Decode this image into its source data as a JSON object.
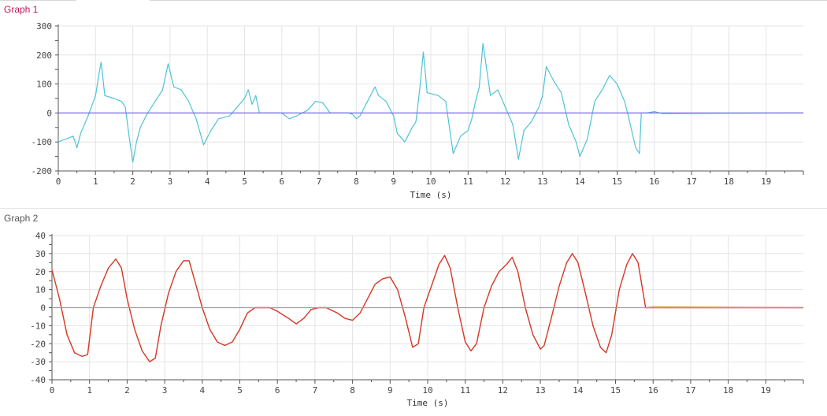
{
  "chart_data": [
    {
      "type": "line",
      "title": "Graph 1",
      "xlabel": "Time (s)",
      "ylabel": "",
      "xlim": [
        0,
        20
      ],
      "ylim": [
        -200,
        300
      ],
      "xticks": [
        0,
        1,
        2,
        3,
        4,
        5,
        6,
        7,
        8,
        9,
        10,
        11,
        12,
        13,
        14,
        15,
        16,
        17,
        18,
        19
      ],
      "yticks": [
        -200,
        -100,
        0,
        100,
        200,
        300
      ],
      "grid": true,
      "colors": {
        "signal": "#4ec3d6",
        "baseline": "#7b68ee"
      },
      "series": [
        {
          "values": [
            [
              0,
              -100
            ],
            [
              0.2,
              -90
            ],
            [
              0.4,
              -80
            ],
            [
              0.5,
              -120
            ],
            [
              0.6,
              -70
            ],
            [
              0.8,
              -10
            ],
            [
              1.0,
              60
            ],
            [
              1.1,
              140
            ],
            [
              1.15,
              175
            ],
            [
              1.25,
              60
            ],
            [
              1.5,
              50
            ],
            [
              1.7,
              40
            ],
            [
              1.8,
              20
            ],
            [
              1.9,
              -80
            ],
            [
              2.0,
              -170
            ],
            [
              2.1,
              -100
            ],
            [
              2.2,
              -50
            ],
            [
              2.4,
              0
            ],
            [
              2.6,
              40
            ],
            [
              2.8,
              80
            ],
            [
              2.95,
              170
            ],
            [
              3.1,
              90
            ],
            [
              3.3,
              80
            ],
            [
              3.5,
              40
            ],
            [
              3.7,
              -20
            ],
            [
              3.9,
              -110
            ],
            [
              4.1,
              -60
            ],
            [
              4.3,
              -20
            ],
            [
              4.6,
              -10
            ],
            [
              4.8,
              20
            ],
            [
              5.0,
              50
            ],
            [
              5.1,
              80
            ],
            [
              5.2,
              30
            ],
            [
              5.3,
              60
            ],
            [
              5.4,
              0
            ],
            [
              6.0,
              0
            ],
            [
              6.2,
              -20
            ],
            [
              6.4,
              -10
            ],
            [
              6.7,
              10
            ],
            [
              6.9,
              40
            ],
            [
              7.1,
              35
            ],
            [
              7.3,
              0
            ],
            [
              7.8,
              0
            ],
            [
              7.9,
              -5
            ],
            [
              8.0,
              -20
            ],
            [
              8.1,
              -10
            ],
            [
              8.3,
              40
            ],
            [
              8.5,
              90
            ],
            [
              8.6,
              60
            ],
            [
              8.8,
              40
            ],
            [
              9.0,
              -10
            ],
            [
              9.1,
              -70
            ],
            [
              9.3,
              -100
            ],
            [
              9.5,
              -50
            ],
            [
              9.6,
              -30
            ],
            [
              9.7,
              80
            ],
            [
              9.8,
              210
            ],
            [
              9.9,
              70
            ],
            [
              10.2,
              60
            ],
            [
              10.4,
              40
            ],
            [
              10.6,
              -140
            ],
            [
              10.8,
              -80
            ],
            [
              11.0,
              -60
            ],
            [
              11.1,
              -20
            ],
            [
              11.2,
              40
            ],
            [
              11.3,
              90
            ],
            [
              11.4,
              240
            ],
            [
              11.6,
              60
            ],
            [
              11.8,
              80
            ],
            [
              12.0,
              20
            ],
            [
              12.2,
              -40
            ],
            [
              12.35,
              -160
            ],
            [
              12.5,
              -60
            ],
            [
              12.7,
              -30
            ],
            [
              12.9,
              20
            ],
            [
              13.0,
              60
            ],
            [
              13.1,
              160
            ],
            [
              13.3,
              110
            ],
            [
              13.5,
              70
            ],
            [
              13.7,
              -40
            ],
            [
              13.9,
              -100
            ],
            [
              14.0,
              -150
            ],
            [
              14.2,
              -90
            ],
            [
              14.4,
              40
            ],
            [
              14.6,
              80
            ],
            [
              14.8,
              130
            ],
            [
              15.0,
              100
            ],
            [
              15.2,
              40
            ],
            [
              15.3,
              -10
            ],
            [
              15.5,
              -120
            ],
            [
              15.6,
              -140
            ],
            [
              15.65,
              0
            ],
            [
              15.8,
              0
            ],
            [
              16.0,
              5
            ],
            [
              16.2,
              -2
            ],
            [
              19.5,
              0
            ],
            [
              20,
              0
            ]
          ]
        },
        {
          "values": [
            [
              0,
              0
            ],
            [
              20,
              0
            ]
          ]
        }
      ]
    },
    {
      "type": "line",
      "title": "Graph 2",
      "xlabel": "Time (s)",
      "ylabel": "",
      "xlim": [
        0,
        20
      ],
      "ylim": [
        -40,
        40
      ],
      "xticks": [
        0,
        1,
        2,
        3,
        4,
        5,
        6,
        7,
        8,
        9,
        10,
        11,
        12,
        13,
        14,
        15,
        16,
        17,
        18,
        19
      ],
      "yticks": [
        -40,
        -30,
        -20,
        -10,
        0,
        10,
        20,
        30,
        40
      ],
      "grid": true,
      "colors": {
        "raw": "#e3b13a",
        "filtered": "#d63a2e",
        "baseline": "#9e9e9e"
      },
      "series": [
        {
          "values": [
            [
              0,
              21
            ],
            [
              0.2,
              5
            ],
            [
              0.4,
              -15
            ],
            [
              0.6,
              -25
            ],
            [
              0.8,
              -27
            ],
            [
              0.95,
              -26
            ],
            [
              1.1,
              0
            ],
            [
              1.3,
              12
            ],
            [
              1.5,
              22
            ],
            [
              1.7,
              27
            ],
            [
              1.85,
              22
            ],
            [
              2.0,
              5
            ],
            [
              2.2,
              -12
            ],
            [
              2.4,
              -24
            ],
            [
              2.6,
              -30
            ],
            [
              2.75,
              -28
            ],
            [
              2.9,
              -10
            ],
            [
              3.1,
              8
            ],
            [
              3.3,
              20
            ],
            [
              3.5,
              26
            ],
            [
              3.65,
              26
            ],
            [
              3.8,
              15
            ],
            [
              4.0,
              0
            ],
            [
              4.2,
              -12
            ],
            [
              4.4,
              -19
            ],
            [
              4.6,
              -21
            ],
            [
              4.8,
              -19
            ],
            [
              5.0,
              -12
            ],
            [
              5.2,
              -3
            ],
            [
              5.4,
              0
            ],
            [
              5.8,
              0
            ],
            [
              6.0,
              -2
            ],
            [
              6.3,
              -6
            ],
            [
              6.5,
              -9
            ],
            [
              6.7,
              -6
            ],
            [
              6.9,
              -1
            ],
            [
              7.1,
              0
            ],
            [
              7.3,
              0
            ],
            [
              7.6,
              -3
            ],
            [
              7.8,
              -6
            ],
            [
              8.0,
              -7
            ],
            [
              8.2,
              -3
            ],
            [
              8.4,
              5
            ],
            [
              8.6,
              13
            ],
            [
              8.8,
              16
            ],
            [
              9.0,
              17
            ],
            [
              9.2,
              10
            ],
            [
              9.4,
              -5
            ],
            [
              9.6,
              -22
            ],
            [
              9.75,
              -20
            ],
            [
              9.9,
              0
            ],
            [
              10.1,
              12
            ],
            [
              10.3,
              24
            ],
            [
              10.45,
              29
            ],
            [
              10.6,
              22
            ],
            [
              10.8,
              0
            ],
            [
              11.0,
              -19
            ],
            [
              11.15,
              -24
            ],
            [
              11.3,
              -20
            ],
            [
              11.5,
              0
            ],
            [
              11.7,
              12
            ],
            [
              11.9,
              20
            ],
            [
              12.1,
              24
            ],
            [
              12.25,
              28
            ],
            [
              12.4,
              20
            ],
            [
              12.6,
              0
            ],
            [
              12.8,
              -15
            ],
            [
              13.0,
              -23
            ],
            [
              13.1,
              -21
            ],
            [
              13.3,
              -5
            ],
            [
              13.5,
              12
            ],
            [
              13.7,
              25
            ],
            [
              13.85,
              30
            ],
            [
              14.0,
              25
            ],
            [
              14.2,
              8
            ],
            [
              14.4,
              -10
            ],
            [
              14.6,
              -22
            ],
            [
              14.75,
              -25
            ],
            [
              14.9,
              -15
            ],
            [
              15.1,
              10
            ],
            [
              15.3,
              24
            ],
            [
              15.45,
              30
            ],
            [
              15.6,
              25
            ],
            [
              15.8,
              0
            ],
            [
              16.0,
              0.5
            ],
            [
              20,
              0
            ]
          ]
        },
        {
          "values": [
            [
              0,
              21
            ],
            [
              0.2,
              5
            ],
            [
              0.4,
              -15
            ],
            [
              0.6,
              -25
            ],
            [
              0.8,
              -27
            ],
            [
              0.95,
              -26
            ],
            [
              1.1,
              0
            ],
            [
              1.3,
              12
            ],
            [
              1.5,
              22
            ],
            [
              1.7,
              27
            ],
            [
              1.85,
              22
            ],
            [
              2.0,
              5
            ],
            [
              2.2,
              -12
            ],
            [
              2.4,
              -24
            ],
            [
              2.6,
              -30
            ],
            [
              2.75,
              -28
            ],
            [
              2.9,
              -10
            ],
            [
              3.1,
              8
            ],
            [
              3.3,
              20
            ],
            [
              3.5,
              26
            ],
            [
              3.65,
              26
            ],
            [
              3.8,
              15
            ],
            [
              4.0,
              0
            ],
            [
              4.2,
              -12
            ],
            [
              4.4,
              -19
            ],
            [
              4.6,
              -21
            ],
            [
              4.8,
              -19
            ],
            [
              5.0,
              -12
            ],
            [
              5.2,
              -3
            ],
            [
              5.4,
              0
            ],
            [
              5.8,
              0
            ],
            [
              6.0,
              -2
            ],
            [
              6.3,
              -6
            ],
            [
              6.5,
              -9
            ],
            [
              6.7,
              -6
            ],
            [
              6.9,
              -1
            ],
            [
              7.1,
              0
            ],
            [
              7.3,
              0
            ],
            [
              7.6,
              -3
            ],
            [
              7.8,
              -6
            ],
            [
              8.0,
              -7
            ],
            [
              8.2,
              -3
            ],
            [
              8.4,
              5
            ],
            [
              8.6,
              13
            ],
            [
              8.8,
              16
            ],
            [
              9.0,
              17
            ],
            [
              9.2,
              10
            ],
            [
              9.4,
              -5
            ],
            [
              9.6,
              -22
            ],
            [
              9.75,
              -20
            ],
            [
              9.9,
              0
            ],
            [
              10.1,
              12
            ],
            [
              10.3,
              24
            ],
            [
              10.45,
              29
            ],
            [
              10.6,
              22
            ],
            [
              10.8,
              0
            ],
            [
              11.0,
              -19
            ],
            [
              11.15,
              -24
            ],
            [
              11.3,
              -20
            ],
            [
              11.5,
              0
            ],
            [
              11.7,
              12
            ],
            [
              11.9,
              20
            ],
            [
              12.1,
              24
            ],
            [
              12.25,
              28
            ],
            [
              12.4,
              20
            ],
            [
              12.6,
              0
            ],
            [
              12.8,
              -15
            ],
            [
              13.0,
              -23
            ],
            [
              13.1,
              -21
            ],
            [
              13.3,
              -5
            ],
            [
              13.5,
              12
            ],
            [
              13.7,
              25
            ],
            [
              13.85,
              30
            ],
            [
              14.0,
              25
            ],
            [
              14.2,
              8
            ],
            [
              14.4,
              -10
            ],
            [
              14.6,
              -22
            ],
            [
              14.75,
              -25
            ],
            [
              14.9,
              -15
            ],
            [
              15.1,
              10
            ],
            [
              15.3,
              24
            ],
            [
              15.45,
              30
            ],
            [
              15.6,
              25
            ],
            [
              15.8,
              0
            ],
            [
              16.0,
              0
            ],
            [
              20,
              0
            ]
          ]
        },
        {
          "values": [
            [
              0,
              0
            ],
            [
              20,
              0
            ]
          ]
        }
      ]
    }
  ]
}
